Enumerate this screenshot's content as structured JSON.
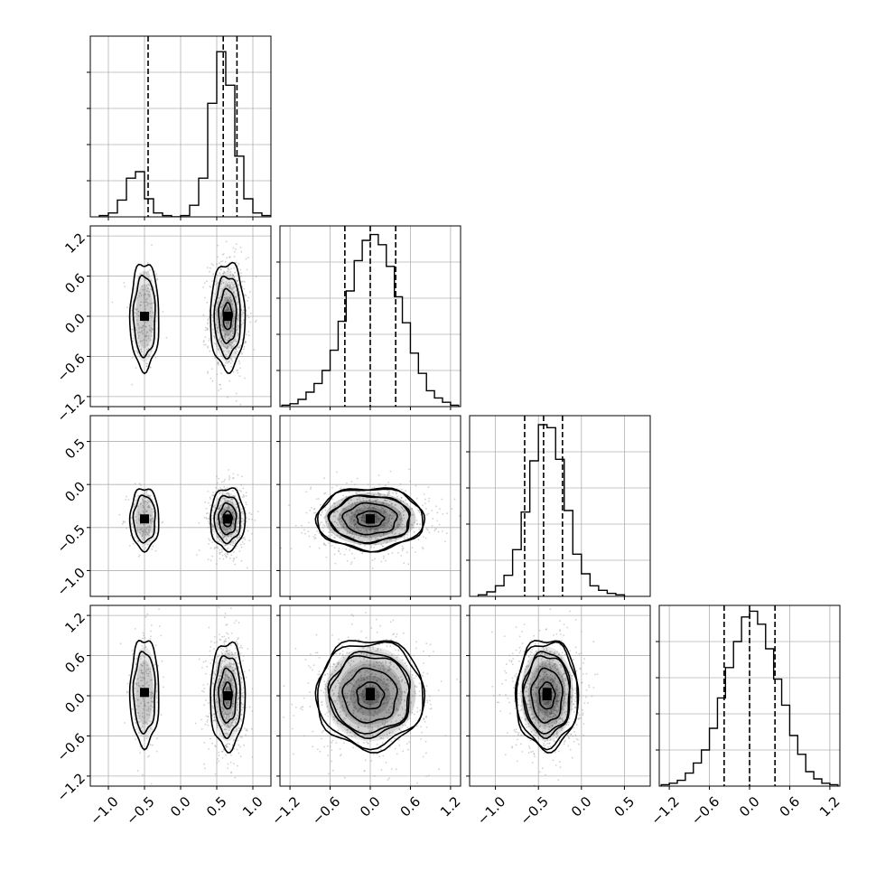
{
  "chart_data": {
    "type": "corner",
    "n_params": 4,
    "axes": [
      {
        "lim": [
          -1.25,
          1.25
        ],
        "ticks": [
          -1.0,
          -0.5,
          0.0,
          0.5,
          1.0
        ],
        "tick_labels": [
          "−1.0",
          "−0.5",
          "0.0",
          "0.5",
          "1.0"
        ]
      },
      {
        "lim": [
          -1.35,
          1.35
        ],
        "ticks": [
          -1.2,
          -0.6,
          0.0,
          0.6,
          1.2
        ],
        "tick_labels": [
          "−1.2",
          "−0.6",
          "0.0",
          "0.6",
          "1.2"
        ]
      },
      {
        "lim": [
          -1.3,
          0.8
        ],
        "ticks": [
          -1.0,
          -0.5,
          0.0,
          0.5
        ],
        "tick_labels": [
          "−1.0",
          "−0.5",
          "0.0",
          "0.5"
        ]
      },
      {
        "lim": [
          -1.35,
          1.35
        ],
        "ticks": [
          -1.2,
          -0.6,
          0.0,
          0.6,
          1.2
        ],
        "tick_labels": [
          "−1.2",
          "−0.6",
          "0.0",
          "0.6",
          "1.2"
        ]
      }
    ],
    "histograms": [
      {
        "edges": [
          -1.125,
          -1.0,
          -0.875,
          -0.75,
          -0.625,
          -0.5,
          -0.375,
          -0.25,
          -0.125,
          0.0,
          0.125,
          0.25,
          0.375,
          0.5,
          0.625,
          0.75,
          0.875,
          1.0,
          1.125,
          1.25
        ],
        "counts": [
          1,
          3,
          13,
          30,
          35,
          14,
          3,
          1,
          0,
          1,
          9,
          30,
          88,
          128,
          102,
          47,
          14,
          3,
          1
        ],
        "quantiles": [
          -0.45,
          0.59,
          0.78
        ],
        "ymax": 140
      },
      {
        "edges": [
          -1.32,
          -1.2,
          -1.08,
          -0.96,
          -0.84,
          -0.72,
          -0.6,
          -0.48,
          -0.36,
          -0.24,
          -0.12,
          0.0,
          0.12,
          0.24,
          0.36,
          0.48,
          0.6,
          0.72,
          0.84,
          0.96,
          1.08,
          1.2,
          1.32
        ],
        "counts": [
          1,
          2,
          5,
          10,
          16,
          25,
          39,
          59,
          80,
          101,
          115,
          119,
          112,
          97,
          76,
          58,
          37,
          23,
          11,
          6,
          3,
          1
        ],
        "quantiles": [
          -0.38,
          0.0,
          0.38
        ],
        "ymax": 125
      },
      {
        "edges": [
          -1.2,
          -1.1,
          -1.0,
          -0.9,
          -0.8,
          -0.7,
          -0.6,
          -0.5,
          -0.4,
          -0.3,
          -0.2,
          -0.1,
          0.0,
          0.1,
          0.2,
          0.3,
          0.4,
          0.5
        ],
        "counts": [
          1,
          3,
          7,
          14,
          31,
          56,
          90,
          114,
          112,
          91,
          57,
          28,
          15,
          7,
          4,
          2,
          1
        ],
        "quantiles": [
          -0.66,
          -0.44,
          -0.22
        ],
        "ymax": 120
      },
      {
        "edges": [
          -1.32,
          -1.2,
          -1.08,
          -0.96,
          -0.84,
          -0.72,
          -0.6,
          -0.48,
          -0.36,
          -0.24,
          -0.12,
          0.0,
          0.12,
          0.24,
          0.36,
          0.48,
          0.6,
          0.72,
          0.84,
          0.96,
          1.08,
          1.2,
          1.32
        ],
        "counts": [
          1,
          2,
          4,
          9,
          16,
          25,
          40,
          61,
          82,
          100,
          117,
          121,
          112,
          95,
          74,
          56,
          35,
          22,
          10,
          5,
          2,
          1
        ],
        "quantiles": [
          -0.38,
          0.0,
          0.38
        ],
        "ymax": 125
      }
    ],
    "modes": [
      {
        "weight": 0.25,
        "mean": [
          -0.5,
          0.0,
          -0.4,
          0.05
        ],
        "sd": [
          0.1,
          0.4,
          0.18,
          0.4
        ]
      },
      {
        "weight": 0.75,
        "mean": [
          0.65,
          0.0,
          -0.4,
          0.0
        ],
        "sd": [
          0.12,
          0.4,
          0.18,
          0.4
        ]
      }
    ],
    "contour_sigmas": [
      0.5,
      1.0,
      1.5,
      2.0
    ],
    "grid": true,
    "colors": {
      "line": "#000000",
      "grid": "#b0b0b0",
      "points": "#9a9a9a"
    }
  }
}
